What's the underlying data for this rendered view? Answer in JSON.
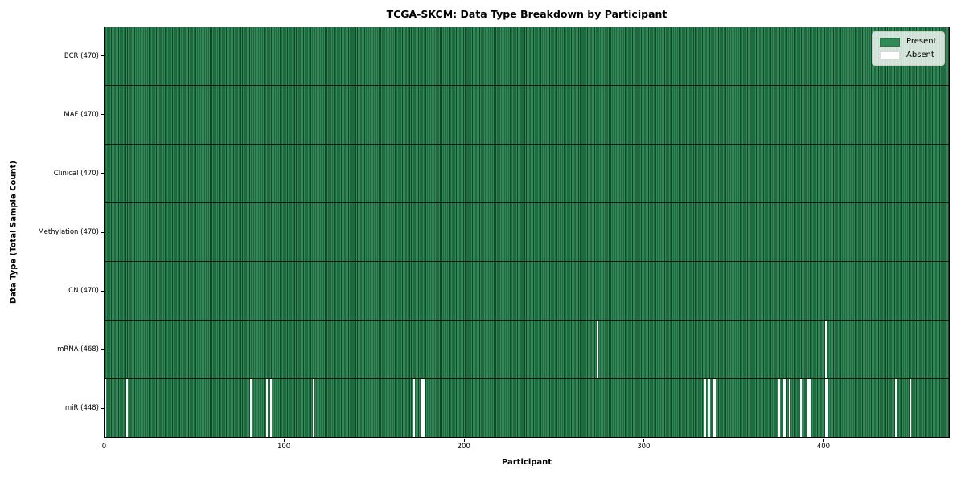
{
  "chart_data": {
    "type": "heatmap",
    "title": "TCGA-SKCM: Data Type Breakdown by Participant",
    "xlabel": "Participant",
    "ylabel": "Data Type (Total Sample Count)",
    "n_participants": 470,
    "xlim": [
      0,
      470
    ],
    "x_ticks": [
      0,
      100,
      200,
      300,
      400
    ],
    "grid": false,
    "legend_position": "upper right",
    "legend_items": [
      {
        "label": "Present",
        "color": "#2e8b57"
      },
      {
        "label": "Absent",
        "color": "#ffffff"
      }
    ],
    "colors": {
      "present": "#2e8b57",
      "absent": "#ffffff",
      "cell_edge": "#17452a",
      "row_separator": "rgba(0,0,0,0.85)"
    },
    "rows": [
      {
        "label": "BCR (470)",
        "data_type": "BCR",
        "present_count": 470,
        "absent_participants": []
      },
      {
        "label": "MAF (470)",
        "data_type": "MAF",
        "present_count": 470,
        "absent_participants": []
      },
      {
        "label": "Clinical (470)",
        "data_type": "Clinical",
        "present_count": 470,
        "absent_participants": []
      },
      {
        "label": "Methylation (470)",
        "data_type": "Methylation",
        "present_count": 470,
        "absent_participants": []
      },
      {
        "label": "CN (470)",
        "data_type": "CN",
        "present_count": 470,
        "absent_participants": []
      },
      {
        "label": "mRNA (468)",
        "data_type": "mRNA",
        "present_count": 468,
        "absent_participants": [
          274,
          401
        ]
      },
      {
        "label": "miR (448)",
        "data_type": "miR",
        "present_count": 448,
        "absent_participants": [
          0,
          12,
          81,
          90,
          92,
          116,
          172,
          176,
          177,
          334,
          336,
          339,
          375,
          378,
          381,
          387,
          391,
          392,
          401,
          402,
          440,
          448
        ]
      }
    ]
  }
}
